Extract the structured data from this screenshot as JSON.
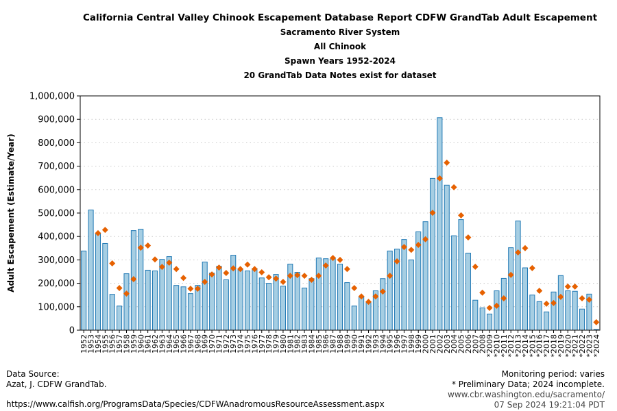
{
  "chart_data": {
    "type": "bar",
    "title": "California Central Valley Chinook Escapement Database Report CDFW GrandTab Adult Escapement",
    "subtitles": [
      "Sacramento River System",
      "All Chinook",
      "Spawn Years 1952-2024",
      "20 GrandTab Data Notes exist for dataset"
    ],
    "xlabel": "",
    "ylabel": "Adult Escapement (Estimate/Year)",
    "ylim": [
      0,
      1000000
    ],
    "yticks": [
      "0",
      "100,000",
      "200,000",
      "300,000",
      "400,000",
      "500,000",
      "600,000",
      "700,000",
      "800,000",
      "900,000",
      "1,000,000"
    ],
    "grid": "horizontal dotted",
    "categories": [
      "1952",
      "1953",
      "1954",
      "1955",
      "1956",
      "1957",
      "1958",
      "1959",
      "1960",
      "1961",
      "1962",
      "1963",
      "1964",
      "1965",
      "1966",
      "1967",
      "1968",
      "1969",
      "1970",
      "1971",
      "1972",
      "1973",
      "1974",
      "1975",
      "1976",
      "1977",
      "1978",
      "1979",
      "1980",
      "1981",
      "1982",
      "1983",
      "1984",
      "1985",
      "1986",
      "1987",
      "1988",
      "1989",
      "1990",
      "1991",
      "1992",
      "1993",
      "1994",
      "1995",
      "1996",
      "1997",
      "1998",
      "1999",
      "2000",
      "2001",
      "2002",
      "2003",
      "2004",
      "2005",
      "2006",
      "2007",
      "2008",
      "*2009",
      "*2010",
      "*2011",
      "*2012",
      "*2013",
      "*2014",
      "*2015",
      "*2016",
      "*2017",
      "*2018",
      "*2019",
      "*2020",
      "*2021",
      "*2022",
      "*2023",
      "*2024"
    ],
    "series": [
      {
        "kind": "bar",
        "color": "#a6cee3",
        "edge": "#1f78b4",
        "values": [
          338000,
          513000,
          412000,
          370000,
          153000,
          103000,
          241000,
          425000,
          431000,
          256000,
          253000,
          302000,
          314000,
          191000,
          185000,
          156000,
          191000,
          291000,
          244000,
          273000,
          215000,
          320000,
          261000,
          253000,
          263000,
          223000,
          200000,
          238000,
          188000,
          282000,
          247000,
          180000,
          220000,
          308000,
          305000,
          309000,
          282000,
          203000,
          103000,
          144000,
          120000,
          168000,
          220000,
          338000,
          346000,
          387000,
          300000,
          420000,
          463000,
          648000,
          907000,
          619000,
          403000,
          472000,
          329000,
          128000,
          95000,
          69000,
          168000,
          221000,
          352000,
          466000,
          266000,
          150000,
          122000,
          78000,
          163000,
          233000,
          168000,
          166000,
          90000,
          154000,
          3000
        ]
      },
      {
        "kind": "marker",
        "marker": "diamond",
        "color": "#e66101",
        "values": [
          null,
          null,
          414000,
          428000,
          285000,
          180000,
          156000,
          218000,
          352000,
          361000,
          302000,
          270000,
          288000,
          261000,
          223000,
          177000,
          177000,
          206000,
          238000,
          267000,
          244000,
          264000,
          261000,
          280000,
          261000,
          247000,
          226000,
          220000,
          206000,
          232000,
          235000,
          232000,
          215000,
          232000,
          276000,
          308000,
          300000,
          261000,
          180000,
          144000,
          121000,
          144000,
          165000,
          232000,
          294000,
          355000,
          343000,
          364000,
          388000,
          501000,
          648000,
          715000,
          610000,
          490000,
          396000,
          271000,
          160000,
          95000,
          104000,
          136000,
          236000,
          332000,
          350000,
          265000,
          168000,
          113000,
          116000,
          142000,
          186000,
          186000,
          136000,
          130000,
          34000
        ]
      }
    ]
  },
  "footer": {
    "source_label": "Data Source:",
    "source": "Azat, J. CDFW GrandTab.",
    "url": "https://www.calfish.org/ProgramsData/Species/CDFWAnadromousResourceAssessment.aspx",
    "monitoring": "Monitoring period: varies",
    "note": "* Preliminary Data; 2024 incomplete.",
    "site": "www.cbr.washington.edu/sacramento/",
    "timestamp": "07 Sep 2024 19:21:04 PDT"
  }
}
